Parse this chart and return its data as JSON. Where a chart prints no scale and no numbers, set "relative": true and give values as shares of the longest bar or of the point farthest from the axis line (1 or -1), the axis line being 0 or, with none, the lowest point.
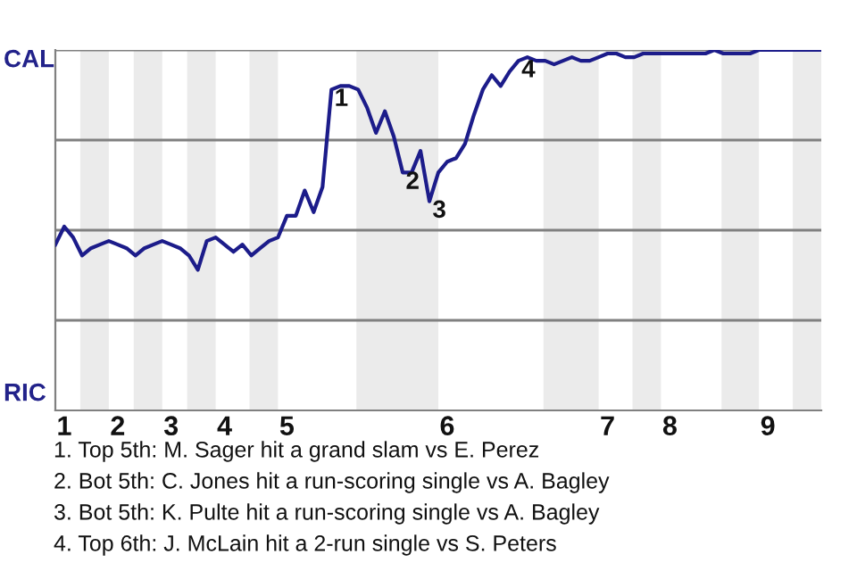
{
  "chart_data": {
    "type": "line",
    "relative": true,
    "categories": [
      null,
      "1",
      null,
      null,
      null,
      null,
      null,
      "2",
      null,
      null,
      null,
      null,
      null,
      "3",
      null,
      null,
      null,
      null,
      null,
      "4",
      null,
      null,
      null,
      null,
      null,
      null,
      "5",
      null,
      null,
      null,
      null,
      null,
      null,
      null,
      null,
      null,
      null,
      null,
      null,
      null,
      null,
      null,
      null,
      null,
      "6",
      null,
      null,
      null,
      null,
      null,
      null,
      null,
      null,
      null,
      null,
      null,
      null,
      null,
      null,
      null,
      null,
      null,
      "7",
      null,
      null,
      null,
      null,
      null,
      null,
      "8",
      null,
      null,
      null,
      null,
      null,
      null,
      null,
      null,
      null,
      null,
      "9",
      null,
      null,
      null,
      null,
      null,
      null
    ],
    "series": [
      {
        "color": "#1c1c8a",
        "marker": "none",
        "values": [
          0.46,
          0.51,
          0.48,
          0.43,
          0.45,
          0.46,
          0.47,
          0.46,
          0.45,
          0.43,
          0.45,
          0.46,
          0.47,
          0.46,
          0.45,
          0.43,
          0.39,
          0.47,
          0.48,
          0.46,
          0.44,
          0.46,
          0.43,
          0.45,
          0.47,
          0.48,
          0.54,
          0.54,
          0.61,
          0.55,
          0.62,
          0.89,
          0.9,
          0.9,
          0.89,
          0.84,
          0.77,
          0.83,
          0.76,
          0.66,
          0.66,
          0.72,
          0.58,
          0.66,
          0.69,
          0.7,
          0.74,
          0.82,
          0.89,
          0.93,
          0.9,
          0.94,
          0.97,
          0.98,
          0.97,
          0.97,
          0.96,
          0.97,
          0.98,
          0.97,
          0.97,
          0.98,
          0.99,
          0.99,
          0.98,
          0.98,
          0.99,
          0.99,
          0.99,
          0.99,
          0.99,
          0.99,
          0.99,
          0.99,
          1.0,
          0.99,
          0.99,
          0.99,
          0.99,
          1.0,
          1.0,
          1.0,
          1.0,
          1.0,
          1.0,
          1.0,
          1.0
        ]
      }
    ],
    "ref_lines": [
      {
        "axis": "y",
        "value": 0.25,
        "color": "#808080"
      },
      {
        "axis": "y",
        "value": 0.5,
        "color": "#808080"
      },
      {
        "axis": "y",
        "value": 0.75,
        "color": "#808080"
      },
      {
        "axis": "y",
        "value": 1,
        "color": "#808080"
      }
    ],
    "annotations": [
      "CAL",
      "RIC",
      {
        "text": "1",
        "y": 0.89
      },
      {
        "text": "2",
        "y": 0.66
      },
      {
        "text": "3",
        "y": 0.58
      },
      {
        "text": "4",
        "y": 0.97
      },
      "1. Top 5th: M. Sager hit a grand slam vs E. Perez",
      "2. Bot 5th: C. Jones hit a run-scoring single vs A. Bagley",
      "3. Bot 5th: K. Pulte hit a run-scoring single vs A. Bagley",
      "4. Top 6th: J. McLain hit a 2-run single vs S. Peters"
    ]
  }
}
